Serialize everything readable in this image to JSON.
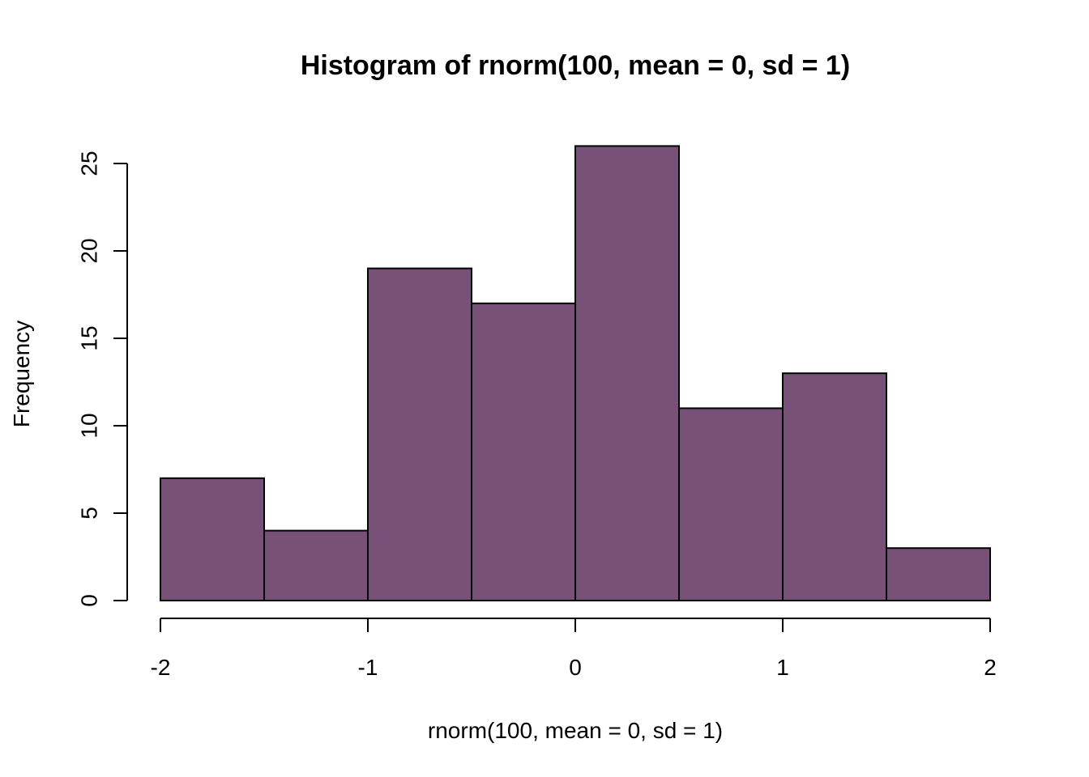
{
  "chart_data": {
    "type": "bar",
    "subtype": "histogram",
    "title": "Histogram of rnorm(100, mean = 0, sd = 1)",
    "xlabel": "rnorm(100, mean = 0, sd = 1)",
    "ylabel": "Frequency",
    "bins": [
      {
        "start": -2.0,
        "end": -1.5,
        "count": 7
      },
      {
        "start": -1.5,
        "end": -1.0,
        "count": 4
      },
      {
        "start": -1.0,
        "end": -0.5,
        "count": 19
      },
      {
        "start": -0.5,
        "end": 0.0,
        "count": 17
      },
      {
        "start": 0.0,
        "end": 0.5,
        "count": 26
      },
      {
        "start": 0.5,
        "end": 1.0,
        "count": 11
      },
      {
        "start": 1.0,
        "end": 1.5,
        "count": 13
      },
      {
        "start": 1.5,
        "end": 2.0,
        "count": 3
      }
    ],
    "xlim": [
      -2,
      2
    ],
    "ylim": [
      0,
      26
    ],
    "x_ticks": [
      -2,
      -1,
      0,
      1,
      2
    ],
    "y_ticks": [
      0,
      5,
      10,
      15,
      20,
      25
    ],
    "bar_color": "#785178",
    "grid": false,
    "legend": "none"
  }
}
